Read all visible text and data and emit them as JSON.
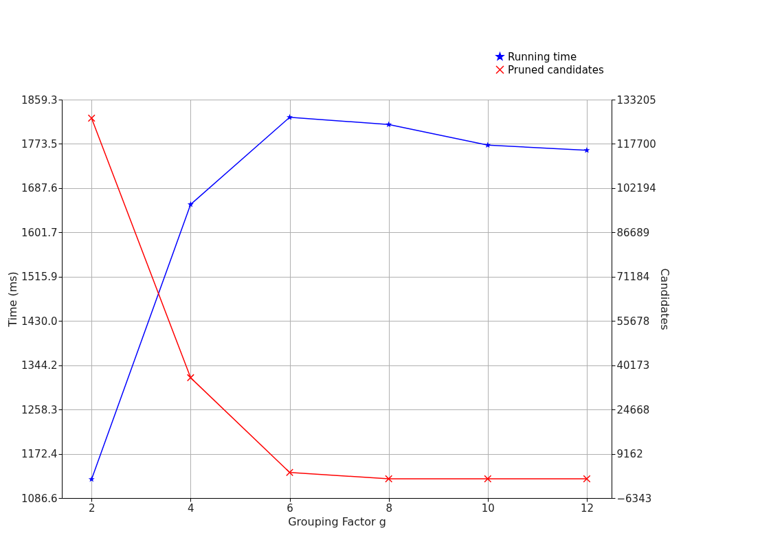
{
  "chart_data": {
    "type": "line",
    "xlabel": "Grouping Factor g",
    "ylabel": "Time (ms)",
    "y2label": "Candidates",
    "x": [
      2,
      4,
      6,
      8,
      10,
      12
    ],
    "xlim": [
      1.4,
      12.5
    ],
    "xticks": [
      2,
      4,
      6,
      8,
      10,
      12
    ],
    "ylim": [
      1086.6,
      1859.3
    ],
    "yticks": [
      1086.6,
      1172.4,
      1258.3,
      1344.2,
      {
        "value": 1430,
        "label": "1430.0"
      },
      1515.9,
      1601.7,
      1687.6,
      1773.5,
      1859.3
    ],
    "y2lim": [
      -6343,
      133205
    ],
    "y2ticks": [
      {
        "value": -6343,
        "label": "−6343"
      },
      9162,
      24668,
      40173,
      55678,
      71184,
      86689,
      102194,
      117700,
      133205
    ],
    "series": [
      {
        "name": "Running time",
        "color": "#0000ff",
        "marker": "star",
        "values": [
          1123,
          1656,
          1825,
          1811,
          1771,
          1761
        ]
      },
      {
        "name": "Pruned candidates",
        "color": "#ff0000",
        "marker": "cross",
        "axis": "y2",
        "values": [
          126700,
          35800,
          2600,
          400,
          400,
          400
        ]
      }
    ],
    "grid": true,
    "legend": "top right",
    "line_style": "solid"
  }
}
